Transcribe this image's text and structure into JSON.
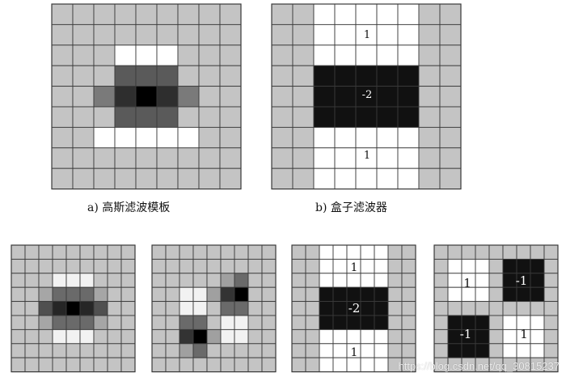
{
  "captions": {
    "a": "a)  高斯滤波模板",
    "b": "b)  盒子滤波器"
  },
  "box_filter_b": {
    "top": "1",
    "middle": "-2",
    "bottom": "1"
  },
  "box_filter_yy": {
    "top": "1",
    "middle": "-2",
    "bottom": "1"
  },
  "box_filter_xy": {
    "top_left": "1",
    "top_right": "-1",
    "bottom_left": "-1",
    "bottom_right": "1"
  },
  "watermark": "https://blog.csdn.net/qq_30815237",
  "colors": {
    "grid_line": "#3a3a3a",
    "cell_gray": "#c4c4c4",
    "white": "#ffffff",
    "black": "#111111"
  }
}
